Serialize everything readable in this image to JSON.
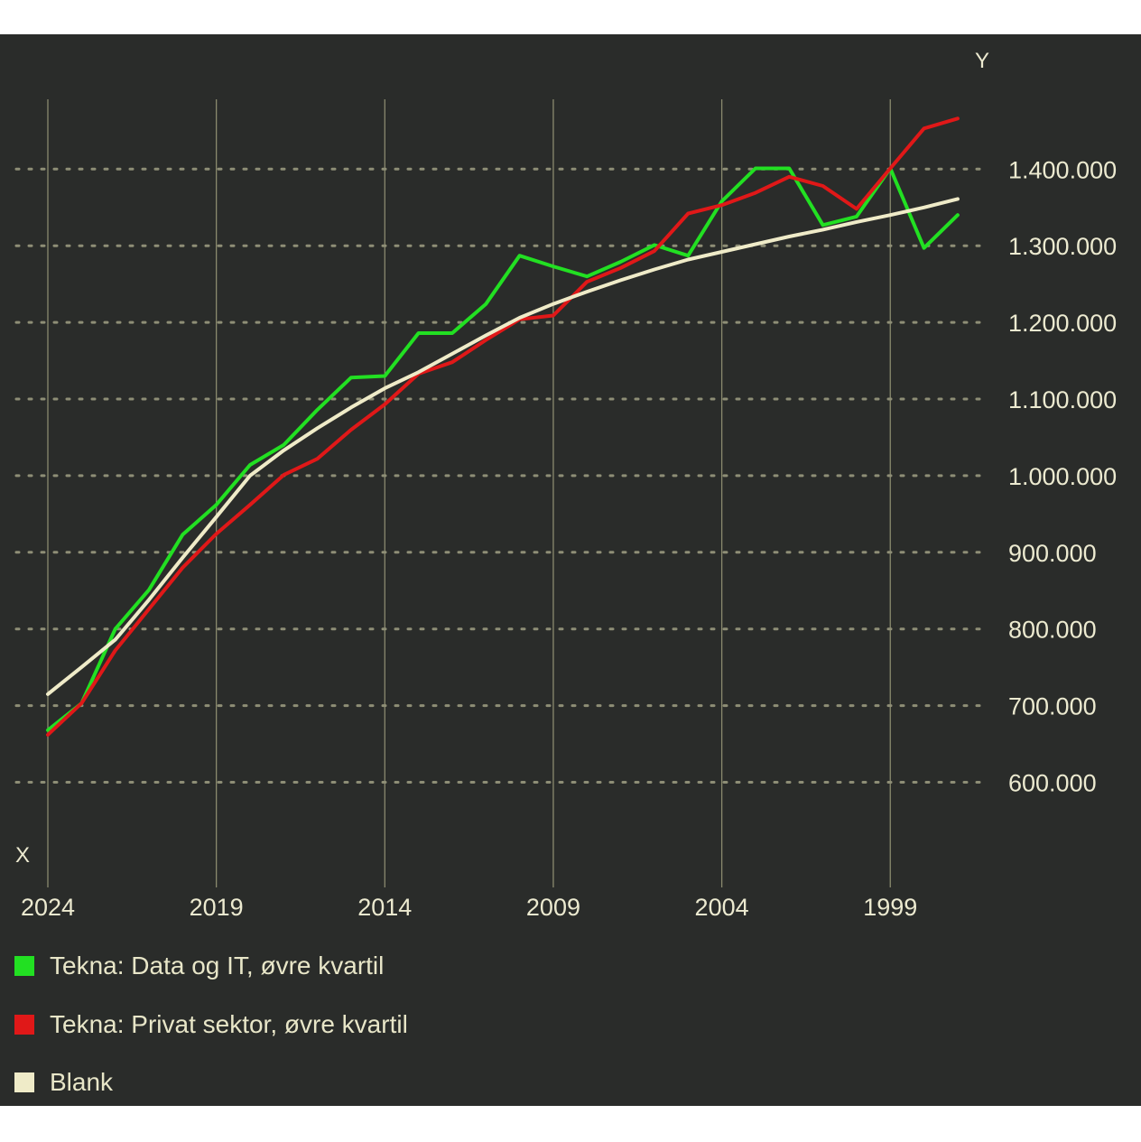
{
  "chart_data": {
    "type": "line",
    "title": "",
    "xlabel": "X",
    "ylabel": "Y",
    "x_reversed": true,
    "x_ticks": [
      "2024",
      "2019",
      "2014",
      "2009",
      "2004",
      "1999"
    ],
    "y_ticks": [
      "600.000",
      "700.000",
      "800.000",
      "900.000",
      "1.000.000",
      "1.100.000",
      "1.200.000",
      "1.300.000",
      "1.400.000"
    ],
    "ylim": [
      500000,
      1500000
    ],
    "xlim": [
      2024,
      1997
    ],
    "grid": true,
    "legend_position": "bottom-left",
    "x": [
      2024,
      2023,
      2022,
      2021,
      2020,
      2019,
      2018,
      2017,
      2016,
      2015,
      2014,
      2013,
      2012,
      2011,
      2010,
      2009,
      2008,
      2007,
      2006,
      2005,
      2004,
      2003,
      2002,
      2001,
      2000,
      1999,
      1998,
      1997
    ],
    "series": [
      {
        "name": "Tekna: Data og IT, øvre kvartil",
        "color": "#22e022",
        "values": [
          668000,
          703000,
          800000,
          851000,
          923000,
          962000,
          1014000,
          1040000,
          1086000,
          1128000,
          1130000,
          1186000,
          1186000,
          1224000,
          1287000,
          1273000,
          1260000,
          1279000,
          1301000,
          1287000,
          1358000,
          1401000,
          1401000,
          1327000,
          1338000,
          1401000,
          1297000,
          1340000
        ]
      },
      {
        "name": "Tekna: Privat sektor, øvre kvartil",
        "color": "#e01818",
        "values": [
          662000,
          703000,
          772000,
          826000,
          880000,
          924000,
          962000,
          1001000,
          1022000,
          1060000,
          1093000,
          1133000,
          1148000,
          1177000,
          1204000,
          1209000,
          1253000,
          1271000,
          1293000,
          1342000,
          1353000,
          1369000,
          1390000,
          1378000,
          1348000,
          1401000,
          1453000,
          1466000
        ]
      },
      {
        "name": "Blank",
        "color": "#efebc8",
        "values": [
          715000,
          750000,
          786000,
          838000,
          893000,
          946000,
          1000000,
          1033000,
          1062000,
          1089000,
          1114000,
          1135000,
          1159000,
          1183000,
          1206000,
          1224000,
          1240000,
          1255000,
          1269000,
          1282000,
          1292000,
          1302000,
          1312000,
          1321000,
          1331000,
          1340000,
          1350000,
          1361000
        ]
      }
    ]
  }
}
